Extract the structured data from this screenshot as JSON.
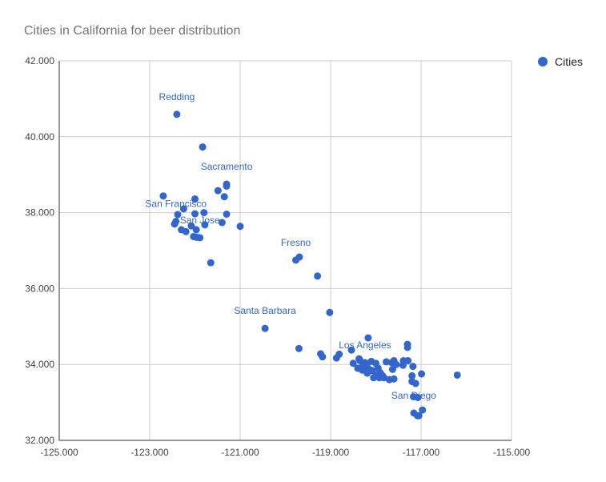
{
  "chart_data": {
    "type": "scatter",
    "title": "Cities in California for beer distribution",
    "xlabel": "",
    "ylabel": "",
    "xlim": [
      -125,
      -115
    ],
    "ylim": [
      32,
      42
    ],
    "x_ticks": [
      "-125.000",
      "-123.000",
      "-121.000",
      "-119.000",
      "-117.000",
      "-115.000"
    ],
    "y_ticks": [
      "42.000",
      "40.000",
      "38.000",
      "36.000",
      "34.000",
      "32.000"
    ],
    "grid": true,
    "legend": {
      "position": "right",
      "entries": [
        "Cities"
      ]
    },
    "colors": {
      "series": "#3366cc",
      "grid": "#cccccc",
      "axis": "#333333"
    },
    "series": [
      {
        "name": "Cities",
        "points": [
          [
            -122.4,
            40.59
          ],
          [
            -121.83,
            39.73
          ],
          [
            -121.3,
            38.75
          ],
          [
            -121.3,
            38.7
          ],
          [
            -121.49,
            38.58
          ],
          [
            -121.35,
            38.42
          ],
          [
            -122.0,
            38.36
          ],
          [
            -122.7,
            38.44
          ],
          [
            -122.25,
            38.1
          ],
          [
            -122.38,
            37.95
          ],
          [
            -122.0,
            37.97
          ],
          [
            -121.8,
            38.0
          ],
          [
            -121.3,
            37.96
          ],
          [
            -122.42,
            37.77
          ],
          [
            -122.45,
            37.7
          ],
          [
            -122.3,
            37.55
          ],
          [
            -122.2,
            37.5
          ],
          [
            -122.08,
            37.65
          ],
          [
            -121.97,
            37.55
          ],
          [
            -121.89,
            37.34
          ],
          [
            -122.03,
            37.37
          ],
          [
            -121.96,
            37.35
          ],
          [
            -121.4,
            37.74
          ],
          [
            -121.78,
            37.68
          ],
          [
            -121.0,
            37.64
          ],
          [
            -121.65,
            36.68
          ],
          [
            -119.69,
            36.83
          ],
          [
            -119.77,
            36.75
          ],
          [
            -119.29,
            36.33
          ],
          [
            -119.02,
            35.37
          ],
          [
            -120.45,
            34.95
          ],
          [
            -119.7,
            34.42
          ],
          [
            -119.22,
            34.28
          ],
          [
            -119.18,
            34.2
          ],
          [
            -118.87,
            34.17
          ],
          [
            -118.81,
            34.27
          ],
          [
            -118.54,
            34.38
          ],
          [
            -118.17,
            34.7
          ],
          [
            -118.5,
            34.03
          ],
          [
            -118.24,
            34.05
          ],
          [
            -118.35,
            34.1
          ],
          [
            -118.2,
            33.95
          ],
          [
            -118.4,
            33.9
          ],
          [
            -118.3,
            33.85
          ],
          [
            -118.19,
            33.77
          ],
          [
            -118.1,
            34.08
          ],
          [
            -118.0,
            34.03
          ],
          [
            -117.95,
            33.9
          ],
          [
            -117.9,
            33.78
          ],
          [
            -117.85,
            33.7
          ],
          [
            -118.05,
            33.65
          ],
          [
            -117.92,
            33.65
          ],
          [
            -117.82,
            33.65
          ],
          [
            -118.15,
            33.87
          ],
          [
            -118.28,
            33.97
          ],
          [
            -118.37,
            34.15
          ],
          [
            -118.08,
            33.84
          ],
          [
            -117.98,
            33.72
          ],
          [
            -117.6,
            34.1
          ],
          [
            -117.65,
            34.05
          ],
          [
            -117.55,
            34.0
          ],
          [
            -117.39,
            34.1
          ],
          [
            -117.29,
            34.1
          ],
          [
            -117.3,
            34.53
          ],
          [
            -117.3,
            34.45
          ],
          [
            -117.4,
            33.98
          ],
          [
            -117.18,
            33.95
          ],
          [
            -117.63,
            33.87
          ],
          [
            -117.7,
            33.6
          ],
          [
            -117.77,
            34.07
          ],
          [
            -117.6,
            33.62
          ],
          [
            -117.2,
            33.7
          ],
          [
            -117.2,
            33.55
          ],
          [
            -117.12,
            33.5
          ],
          [
            -116.99,
            33.75
          ],
          [
            -116.2,
            33.72
          ],
          [
            -117.07,
            33.13
          ],
          [
            -117.17,
            33.15
          ],
          [
            -116.97,
            32.8
          ],
          [
            -117.16,
            32.72
          ],
          [
            -117.08,
            32.65
          ],
          [
            -117.05,
            32.65
          ]
        ]
      }
    ],
    "annotations": [
      {
        "text": "Redding",
        "x": -122.4,
        "y": 40.59
      },
      {
        "text": "Sacramento",
        "x": -121.3,
        "y": 38.75
      },
      {
        "text": "San Francisco",
        "x": -122.42,
        "y": 37.77
      },
      {
        "text": "San Jose",
        "x": -121.89,
        "y": 37.34
      },
      {
        "text": "Fresno",
        "x": -119.77,
        "y": 36.75
      },
      {
        "text": "Santa Barbara",
        "x": -120.45,
        "y": 34.95
      },
      {
        "text": "Los Angeles",
        "x": -118.24,
        "y": 34.05
      },
      {
        "text": "San Diego",
        "x": -117.16,
        "y": 32.72
      }
    ]
  }
}
